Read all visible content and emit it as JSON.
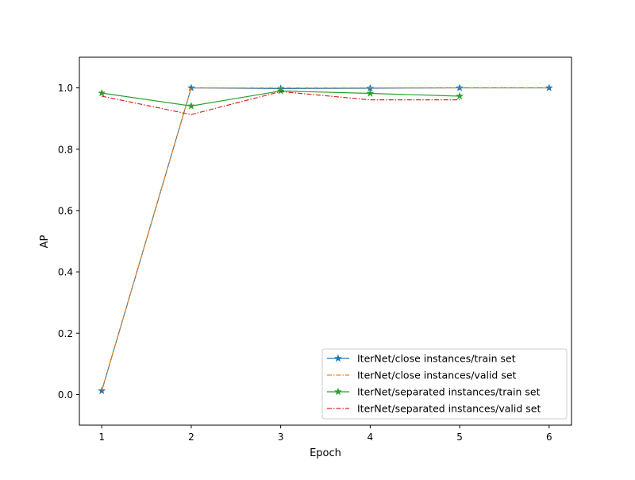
{
  "chart_data": {
    "type": "line",
    "title": "",
    "xlabel": "Epoch",
    "ylabel": "AP",
    "xlim": [
      0.75,
      6.25
    ],
    "ylim": [
      -0.1,
      1.1
    ],
    "x_ticks": [
      1,
      2,
      3,
      4,
      5,
      6
    ],
    "x_tick_labels": [
      "1",
      "2",
      "3",
      "4",
      "5",
      "6"
    ],
    "y_ticks": [
      0.0,
      0.2,
      0.4,
      0.6,
      0.8,
      1.0
    ],
    "y_tick_labels": [
      "0.0",
      "0.2",
      "0.4",
      "0.6",
      "0.8",
      "1.0"
    ],
    "grid": false,
    "legend_position": "lower-right",
    "series": [
      {
        "name": "IterNet/close instances/train set",
        "x": [
          1,
          2,
          3,
          4,
          5,
          6
        ],
        "y": [
          0.012,
          1.0,
          0.998,
          0.999,
          1.0,
          1.0
        ],
        "color": "#1f77b4",
        "line_style": "solid",
        "marker": "star"
      },
      {
        "name": "IterNet/close instances/valid set",
        "x": [
          1,
          2,
          3,
          4,
          5,
          6
        ],
        "y": [
          0.012,
          1.0,
          1.0,
          1.0,
          1.0,
          1.0
        ],
        "color": "#ff7f0e",
        "line_style": "dashdot",
        "marker": "none"
      },
      {
        "name": "IterNet/separated instances/train set",
        "x": [
          1,
          2,
          3,
          4,
          5
        ],
        "y": [
          0.983,
          0.941,
          0.99,
          0.982,
          0.973
        ],
        "color": "#2ca02c",
        "line_style": "solid",
        "marker": "star"
      },
      {
        "name": "IterNet/separated instances/valid set",
        "x": [
          1,
          2,
          3,
          4,
          5
        ],
        "y": [
          0.973,
          0.913,
          0.988,
          0.961,
          0.961
        ],
        "color": "#d62728",
        "line_style": "dashdot",
        "marker": "none"
      }
    ]
  }
}
